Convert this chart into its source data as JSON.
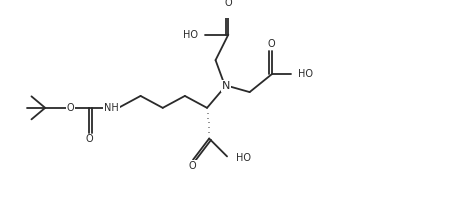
{
  "background": "#ffffff",
  "line_color": "#2a2a2a",
  "line_width": 1.3,
  "font_size": 7.0,
  "figsize": [
    4.72,
    1.98
  ],
  "dpi": 100,
  "xlim": [
    0,
    10
  ],
  "ylim": [
    0,
    4.2
  ]
}
